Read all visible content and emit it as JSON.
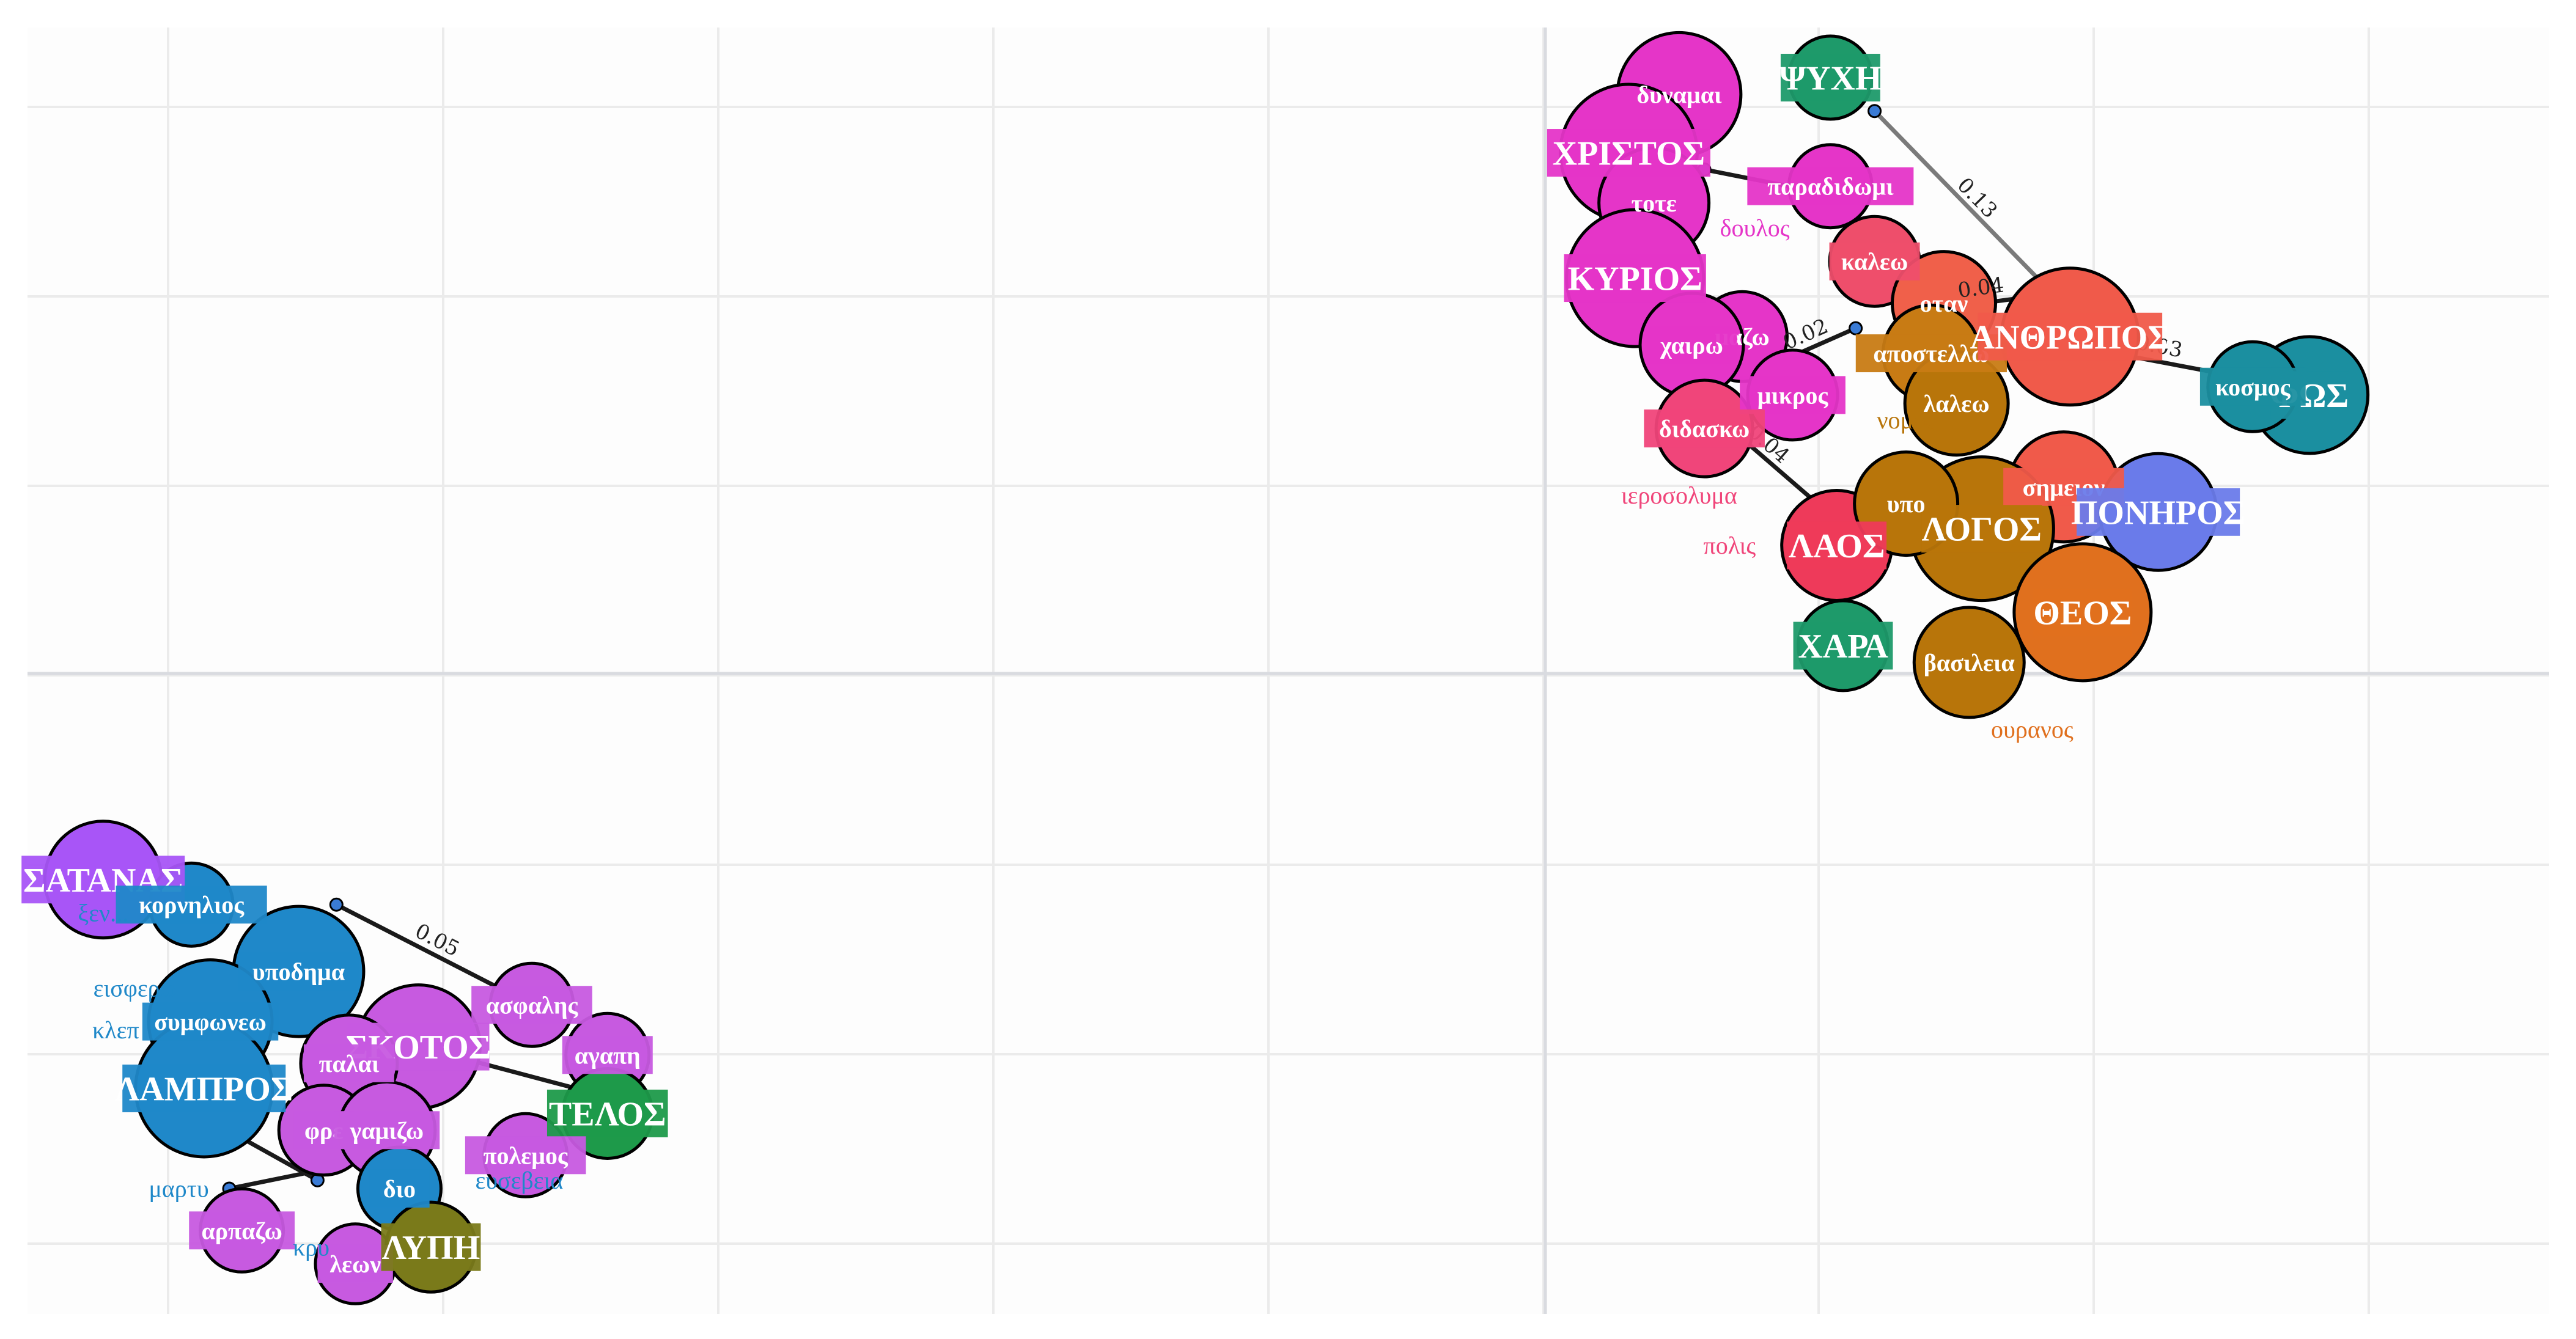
{
  "chart_data": {
    "type": "scatter",
    "title": "",
    "xlabel": "",
    "ylabel": "",
    "grid": true,
    "legend": "none",
    "clusters": [
      {
        "name": "",
        "nodes": [
          {
            "label": "ΣΑΤΑΝΑΣ",
            "x": 0.6,
            "y": 5.7,
            "color": "#a855f7",
            "box": true,
            "size": 110
          },
          {
            "label": "κορνηλιος",
            "x": 1.3,
            "y": 5.55,
            "color": "#1f88c9",
            "box": true,
            "size": 60
          },
          {
            "label": "υποδημα",
            "x": 2.15,
            "y": 5.15,
            "color": "#1f88c9",
            "box": true,
            "size": 130
          },
          {
            "label": "συμφωνεω",
            "x": 1.45,
            "y": 4.85,
            "color": "#1f88c9",
            "box": true,
            "size": 120
          },
          {
            "label": "ΛΑΜΠΡΟΣ",
            "x": 1.4,
            "y": 4.45,
            "color": "#1f88c9",
            "box": true,
            "size": 140
          },
          {
            "label": "ΣΚΟΤΟΣ",
            "x": 3.1,
            "y": 4.7,
            "color": "#c75ae0",
            "box": true,
            "size": 120
          },
          {
            "label": "παλαι",
            "x": 2.55,
            "y": 4.6,
            "color": "#c75ae0",
            "box": true,
            "size": 80
          },
          {
            "label": "φρε",
            "x": 2.35,
            "y": 4.2,
            "color": "#c75ae0",
            "box": true,
            "size": 70
          },
          {
            "label": "γαμιζω",
            "x": 2.85,
            "y": 4.2,
            "color": "#c75ae0",
            "box": true,
            "size": 80
          },
          {
            "label": "ασφαλης",
            "x": 4.0,
            "y": 4.95,
            "color": "#c75ae0",
            "box": true,
            "size": 60
          },
          {
            "label": "αγαπη",
            "x": 4.6,
            "y": 4.65,
            "color": "#c75ae0",
            "box": true,
            "size": 60
          },
          {
            "label": "ΤΕΛΟΣ",
            "x": 4.6,
            "y": 4.3,
            "color": "#1e9a4a",
            "box": true,
            "size": 70
          },
          {
            "label": "πολεμος",
            "x": 3.95,
            "y": 4.05,
            "color": "#c75ae0",
            "box": true,
            "size": 60
          },
          {
            "label": "διο",
            "x": 2.95,
            "y": 3.85,
            "color": "#1f88c9",
            "box": true,
            "size": 60
          },
          {
            "label": "αρπαζω",
            "x": 1.7,
            "y": 3.6,
            "color": "#c75ae0",
            "box": true,
            "size": 60
          },
          {
            "label": "λεων",
            "x": 2.6,
            "y": 3.4,
            "color": "#c75ae0",
            "box": true,
            "size": 55
          },
          {
            "label": "ΛΥΠΗ",
            "x": 3.2,
            "y": 3.5,
            "color": "#7a7a1a",
            "box": true,
            "size": 70
          }
        ],
        "text_labels": [
          {
            "label": "ξεν...",
            "x": 0.6,
            "y": 5.45,
            "color": "#1f88c9"
          },
          {
            "label": "εισφερω",
            "x": 0.85,
            "y": 5.0,
            "color": "#1f88c9"
          },
          {
            "label": "κλεπ",
            "x": 0.7,
            "y": 4.75,
            "color": "#1f88c9"
          },
          {
            "label": "μαρτυ",
            "x": 1.2,
            "y": 3.8,
            "color": "#1f88c9"
          },
          {
            "label": "κρυ",
            "x": 2.25,
            "y": 3.45,
            "color": "#1f88c9"
          },
          {
            "label": "ευσεβεια",
            "x": 3.9,
            "y": 3.85,
            "color": "#1f88c9"
          }
        ],
        "edges": [
          {
            "from": [
              2.45,
              5.55
            ],
            "to": [
              4.0,
              4.95
            ],
            "weight": "0.05"
          },
          {
            "from": [
              1.35,
              4.3
            ],
            "to": [
              2.3,
              3.9
            ],
            "weight": ""
          },
          {
            "from": [
              3.1,
              4.7
            ],
            "to": [
              4.6,
              4.4
            ],
            "weight": ""
          },
          {
            "from": [
              1.6,
              3.85
            ],
            "to": [
              2.9,
              4.05
            ],
            "weight": ""
          }
        ]
      },
      {
        "name": "",
        "nodes": [
          {
            "label": "δυναμαι",
            "x": 13.1,
            "y": 10.4,
            "color": "#e535c8",
            "box": false,
            "size": 120
          },
          {
            "label": "ΨΥΧΗ",
            "x": 14.3,
            "y": 10.5,
            "color": "#1e9a6a",
            "box": true,
            "size": 60
          },
          {
            "label": "ΧΡΙΣΤΟΣ",
            "x": 12.7,
            "y": 10.05,
            "color": "#e535c8",
            "box": true,
            "size": 140
          },
          {
            "label": "παραδιδωμι",
            "x": 14.3,
            "y": 9.85,
            "color": "#e535c8",
            "box": true,
            "size": 60
          },
          {
            "label": "τοτε",
            "x": 12.9,
            "y": 9.75,
            "color": "#e535c8",
            "box": false,
            "size": 100
          },
          {
            "label": "ΚΥΡΙΟΣ",
            "x": 12.75,
            "y": 9.3,
            "color": "#e535c8",
            "box": true,
            "size": 140
          },
          {
            "label": "καλεω",
            "x": 14.65,
            "y": 9.4,
            "color": "#ee4e6b",
            "box": true,
            "size": 70
          },
          {
            "label": "οταν",
            "x": 15.2,
            "y": 9.15,
            "color": "#f0604a",
            "box": false,
            "size": 90
          },
          {
            "label": "μαζω",
            "x": 13.6,
            "y": 8.95,
            "color": "#e535c8",
            "box": false,
            "size": 70
          },
          {
            "label": "χαιρω",
            "x": 13.2,
            "y": 8.9,
            "color": "#e535c8",
            "box": true,
            "size": 90
          },
          {
            "label": "αποστελλω",
            "x": 15.1,
            "y": 8.85,
            "color": "#c87b14",
            "box": true,
            "size": 80
          },
          {
            "label": "ΑΝΘΡΩΠΟΣ",
            "x": 16.2,
            "y": 8.95,
            "color": "#f05a4a",
            "box": true,
            "size": 140
          },
          {
            "label": "μικρος",
            "x": 14.0,
            "y": 8.6,
            "color": "#e535c8",
            "box": true,
            "size": 70
          },
          {
            "label": "λαλεω",
            "x": 15.3,
            "y": 8.55,
            "color": "#b8750a",
            "box": false,
            "size": 90
          },
          {
            "label": "διδασκω",
            "x": 13.3,
            "y": 8.4,
            "color": "#f0457a",
            "box": true,
            "size": 80
          },
          {
            "label": "ΦΩΣ",
            "x": 18.1,
            "y": 8.6,
            "color": "#1b8fa0",
            "box": true,
            "size": 110
          },
          {
            "label": "κοσμος",
            "x": 17.65,
            "y": 8.65,
            "color": "#1b8fa0",
            "box": true,
            "size": 70
          },
          {
            "label": "σημειον",
            "x": 16.15,
            "y": 8.05,
            "color": "#f05a4a",
            "box": true,
            "size": 100
          },
          {
            "label": "ΠΟΝΗΡΟΣ",
            "x": 16.9,
            "y": 7.9,
            "color": "#6a7bea",
            "box": true,
            "size": 110
          },
          {
            "label": "ΛΑΟΣ",
            "x": 14.35,
            "y": 7.7,
            "color": "#ee3a5a",
            "box": true,
            "size": 100
          },
          {
            "label": "ΛΟΓΟΣ",
            "x": 15.5,
            "y": 7.8,
            "color": "#b8750a",
            "box": true,
            "size": 150
          },
          {
            "label": "υπο",
            "x": 14.9,
            "y": 7.95,
            "color": "#b8750a",
            "box": false,
            "size": 90
          },
          {
            "label": "ΘΕΟΣ",
            "x": 16.3,
            "y": 7.3,
            "color": "#e0701e",
            "box": true,
            "size": 140
          },
          {
            "label": "ΧΑΡΑ",
            "x": 14.4,
            "y": 7.1,
            "color": "#1e9a6a",
            "box": true,
            "size": 70
          },
          {
            "label": "βασιλεια",
            "x": 15.4,
            "y": 7.0,
            "color": "#b8750a",
            "box": false,
            "size": 100
          }
        ],
        "text_labels": [
          {
            "label": "δουλος",
            "x": 13.7,
            "y": 9.55,
            "color": "#e535c8"
          },
          {
            "label": "ιεροσολυμα",
            "x": 13.1,
            "y": 7.95,
            "color": "#f0457a"
          },
          {
            "label": "πολις",
            "x": 13.5,
            "y": 7.65,
            "color": "#f0457a"
          },
          {
            "label": "ουρανος",
            "x": 15.9,
            "y": 6.55,
            "color": "#e0701e"
          },
          {
            "label": "νομος",
            "x": 14.9,
            "y": 8.4,
            "color": "#b8750a"
          }
        ],
        "edges": [
          {
            "from": [
              14.65,
              10.3
            ],
            "to": [
              16.2,
              9.1
            ],
            "weight": "0.13"
          },
          {
            "from": [
              13.3,
              9.95
            ],
            "to": [
              14.3,
              9.8
            ],
            "weight": ""
          },
          {
            "from": [
              13.2,
              8.6
            ],
            "to": [
              14.35,
              7.85
            ],
            "weight": "0.04"
          },
          {
            "from": [
              13.75,
              8.75
            ],
            "to": [
              14.5,
              9.0
            ],
            "weight": "0.02"
          },
          {
            "from": [
              16.2,
              8.9
            ],
            "to": [
              17.6,
              8.7
            ],
            "weight": "0.03"
          },
          {
            "from": [
              15.0,
              9.1
            ],
            "to": [
              16.0,
              9.2
            ],
            "weight": "0.04"
          }
        ]
      }
    ]
  }
}
